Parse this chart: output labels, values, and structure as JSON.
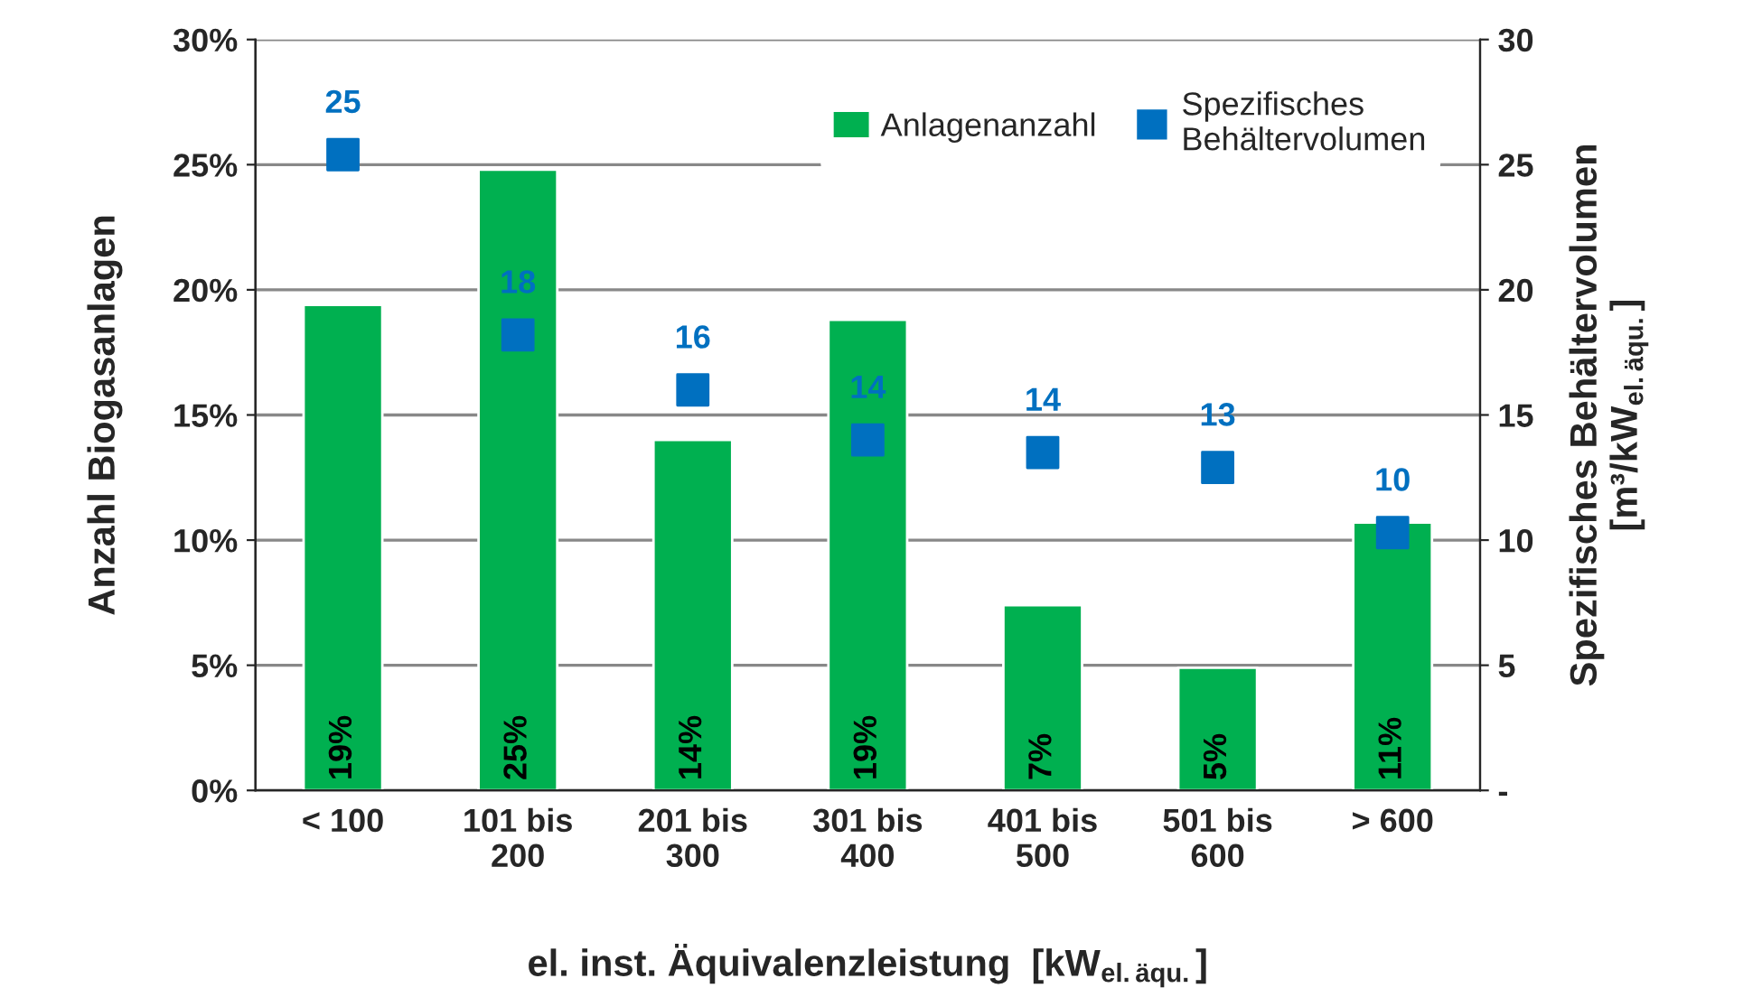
{
  "chart_data": {
    "type": "bar",
    "categories": [
      "< 100",
      "101 bis\n200",
      "201 bis\n300",
      "301 bis\n400",
      "401 bis\n500",
      "501 bis\n600",
      "> 600"
    ],
    "xlabel": "el. inst. Äquivalenzleistung  [kW$_{el.äqu.}$]",
    "ylabel": "Anzahl Biogasanlagen",
    "y2label": "Spezifisches Behältervolumen\n[m³/kW$_{el.äqu.}$]",
    "series": [
      {
        "name": "Anlagenanzahl",
        "color": "#00b050",
        "values": [
          19.4,
          24.8,
          14.0,
          18.8,
          7.4,
          4.9,
          10.7
        ],
        "value_labels": [
          "19%",
          "25%",
          "14%",
          "19%",
          "7%",
          "5%",
          "11%"
        ]
      },
      {
        "name": "Spezifisches\nBehältervolumen",
        "type": "scatter",
        "axis": "y2",
        "color": "#0070c0",
        "marker": "square",
        "values": [
          25.4,
          18.2,
          16.0,
          14.0,
          13.5,
          12.9,
          10.3
        ],
        "value_labels": [
          "25",
          "18",
          "16",
          "14",
          "14",
          "13",
          "10"
        ]
      }
    ],
    "ylim": [
      0,
      30
    ],
    "yticks": [
      {
        "value": 0,
        "label": "0%"
      },
      {
        "value": 5,
        "label": "5%"
      },
      {
        "value": 10,
        "label": "10%"
      },
      {
        "value": 15,
        "label": "15%"
      },
      {
        "value": 20,
        "label": "20%"
      },
      {
        "value": 25,
        "label": "25%"
      },
      {
        "value": 30,
        "label": "30%"
      }
    ],
    "y2lim": [
      0,
      30
    ],
    "y2ticks": [
      {
        "value": 0,
        "label": "-"
      },
      5,
      10,
      15,
      20,
      25,
      30
    ],
    "grid": "y",
    "legend": "top right"
  }
}
